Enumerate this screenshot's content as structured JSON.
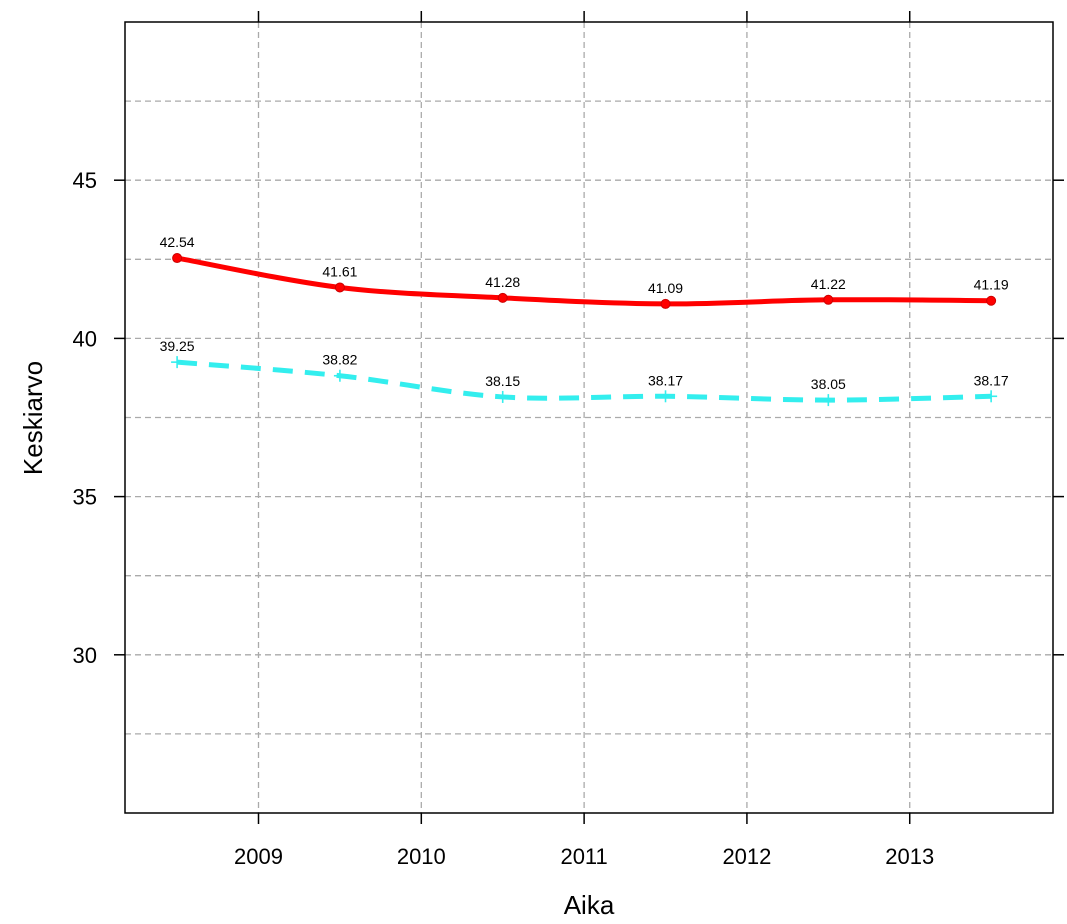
{
  "chart_data": {
    "type": "line",
    "xlabel": "Aika",
    "ylabel": "Keskiarvo",
    "xlim": [
      2008.18,
      2013.88
    ],
    "ylim": [
      25.0,
      50.0
    ],
    "x_ticks": [
      2009,
      2010,
      2011,
      2012,
      2013
    ],
    "y_ticks": [
      30,
      35,
      40,
      45
    ],
    "grid": true,
    "x": [
      2008.5,
      2009.5,
      2010.5,
      2011.5,
      2012.5,
      2013.5
    ],
    "series": [
      {
        "values": [
          42.54,
          41.61,
          41.28,
          41.09,
          41.22,
          41.19
        ],
        "color": "#ff0000",
        "dash": "solid",
        "marker": "circle"
      },
      {
        "values": [
          39.25,
          38.82,
          38.15,
          38.17,
          38.05,
          38.17
        ],
        "color": "#33eeee",
        "dash": "dashed",
        "marker": "plus"
      }
    ]
  }
}
